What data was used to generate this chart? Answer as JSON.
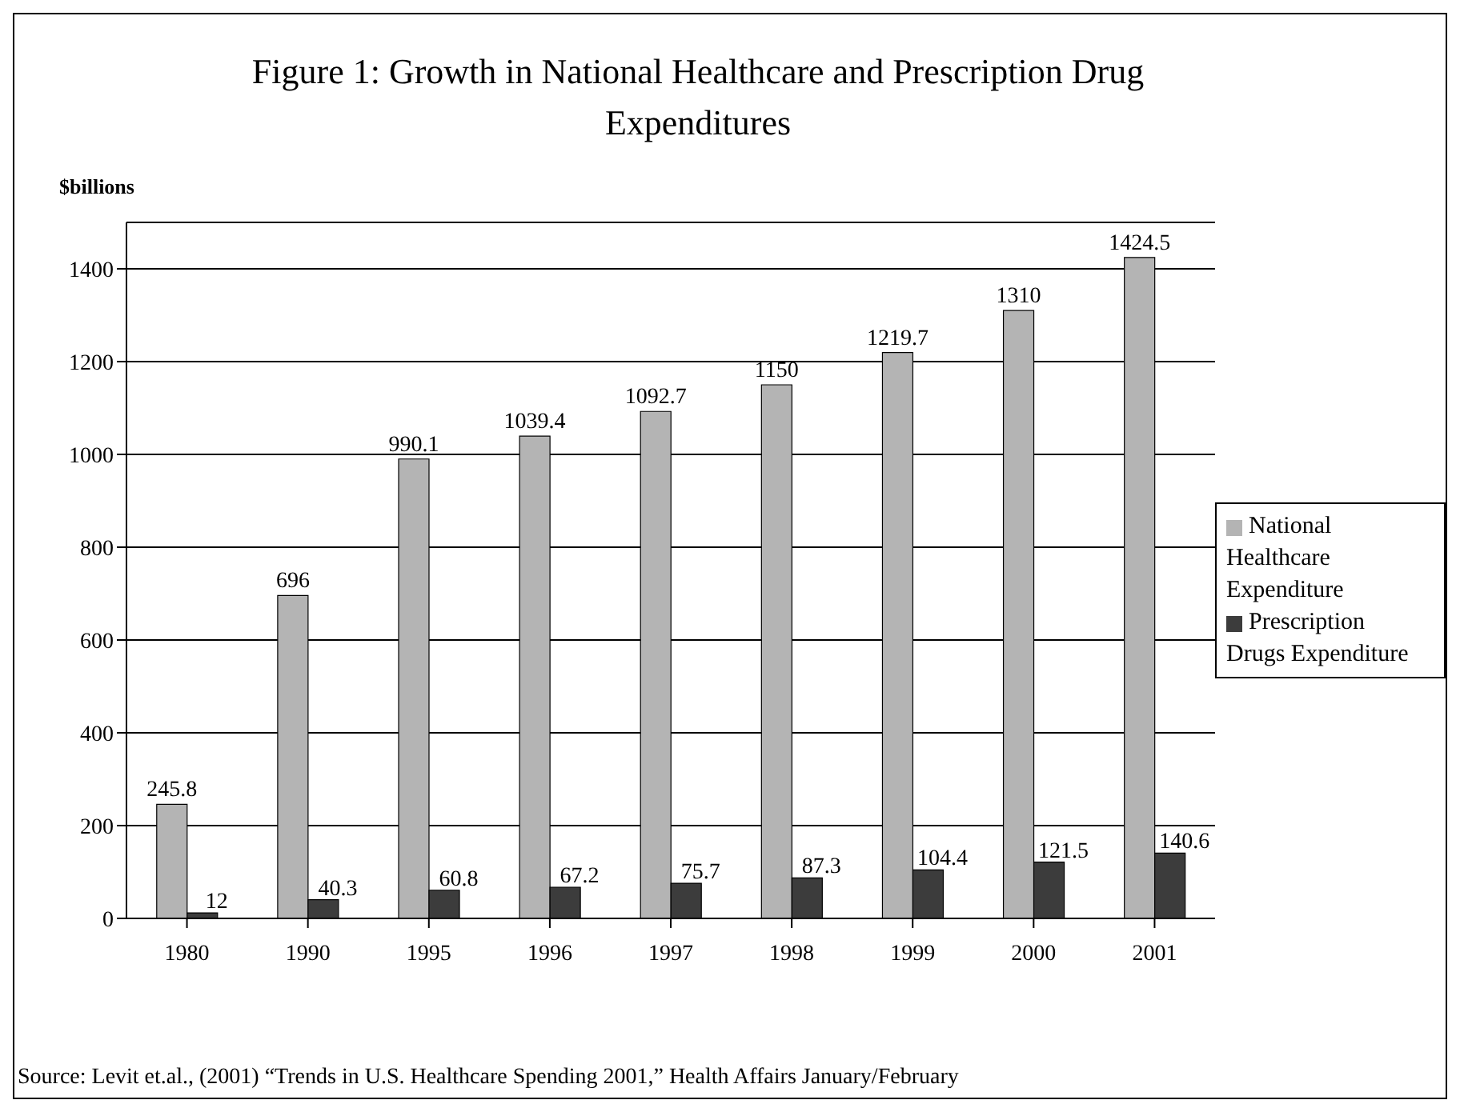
{
  "chart_data": {
    "type": "bar",
    "title": "Figure 1: Growth in National Healthcare and Prescription Drug Expenditures",
    "ylabel": "$billions",
    "categories": [
      "1980",
      "1990",
      "1995",
      "1996",
      "1997",
      "1998",
      "1999",
      "2000",
      "2001"
    ],
    "series": [
      {
        "name": "National Healthcare Expenditure",
        "color": "#b4b4b4",
        "values": [
          245.8,
          696,
          990.1,
          1039.4,
          1092.7,
          1150,
          1219.7,
          1310,
          1424.5
        ]
      },
      {
        "name": "Prescription Drugs Expenditure",
        "color": "#3c3c3c",
        "values": [
          12,
          40.3,
          60.8,
          67.2,
          75.7,
          87.3,
          104.4,
          121.5,
          140.6
        ]
      }
    ],
    "ylim": [
      0,
      1500
    ],
    "yticks": [
      0,
      200,
      400,
      600,
      800,
      1000,
      1200,
      1400
    ],
    "grid": "y",
    "legend": "right",
    "data_labels": true,
    "annotations": [
      "Source: Levit et.al., (2001) “Trends in U.S. Healthcare Spending 2001,” Health Affairs January/February"
    ]
  }
}
